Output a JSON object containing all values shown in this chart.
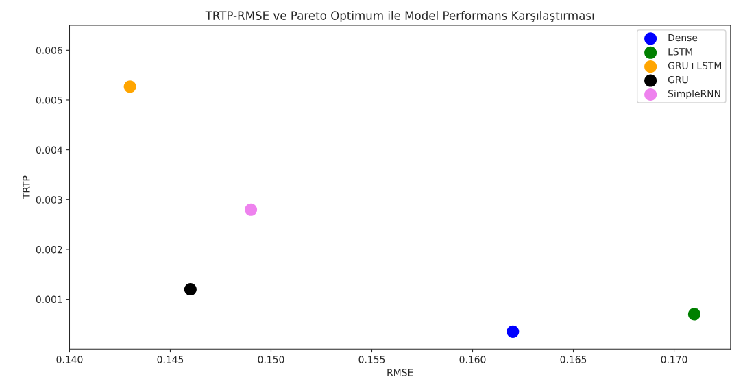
{
  "chart_data": {
    "type": "scatter",
    "title": "TRTP-RMSE ve Pareto Optimum ile Model Performans Karşılaştırması",
    "xlabel": "RMSE",
    "ylabel": "TRTP",
    "series": [
      {
        "name": "Dense",
        "color": "#0000ff",
        "x": [
          0.162
        ],
        "values": [
          0.00035
        ]
      },
      {
        "name": "LSTM",
        "color": "#008000",
        "x": [
          0.171
        ],
        "values": [
          0.0007
        ]
      },
      {
        "name": "GRU+LSTM",
        "color": "#ffa500",
        "x": [
          0.143
        ],
        "values": [
          0.00527
        ]
      },
      {
        "name": "GRU",
        "color": "#000000",
        "x": [
          0.146
        ],
        "values": [
          0.0012
        ]
      },
      {
        "name": "SimpleRNN",
        "color": "#ee82ee",
        "x": [
          0.149
        ],
        "values": [
          0.0028
        ]
      }
    ],
    "xlim": [
      0.14,
      0.1728
    ],
    "xticks": [
      {
        "value": 0.14,
        "label": "0.140"
      },
      0.145,
      {
        "value": 0.15,
        "label": "0.150"
      },
      0.155,
      {
        "value": 0.16,
        "label": "0.160"
      },
      0.165,
      {
        "value": 0.17,
        "label": "0.170"
      }
    ],
    "ylim": [
      0.0,
      0.0065
    ],
    "yticks": [
      0.001,
      0.002,
      0.003,
      0.004,
      0.005,
      0.006
    ],
    "marker": "circle",
    "legend": "top right",
    "grid": false
  }
}
